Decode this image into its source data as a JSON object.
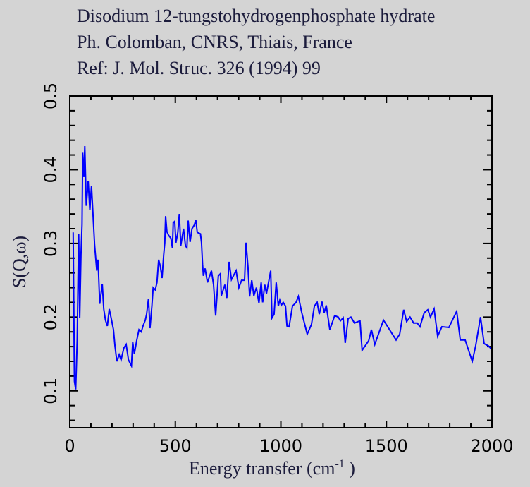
{
  "title_lines": [
    "Disodium 12-tungstohydrogenphosphate hydrate",
    "Ph. Colomban, CNRS, Thiais, France",
    "Ref: J. Mol. Struc. 326 (1994) 99"
  ],
  "colors": {
    "background": "#d4d4d4",
    "line": "#0000ff",
    "axes": "#000000",
    "text": "#1c1c3c"
  },
  "chart_data": {
    "type": "line",
    "title": "Disodium 12-tungstohydrogenphosphate hydrate",
    "xlabel": "Energy transfer (cm",
    "xlabel_sup": "-1",
    "xlabel_close": " )",
    "ylabel": "S(Q,ω)",
    "xlim": [
      0,
      2000
    ],
    "ylim": [
      0.05,
      0.5
    ],
    "xticks": [
      0,
      500,
      1000,
      1500,
      2000
    ],
    "xtick_labels": [
      "0",
      "500",
      "1000",
      "1500",
      "2000"
    ],
    "yticks": [
      0.1,
      0.2,
      0.3,
      0.4,
      0.5
    ],
    "ytick_labels": [
      "0.1",
      "0.2",
      "0.3",
      "0.4",
      "0.5"
    ],
    "x_minor_step": 100,
    "y_minor_step": 0.02,
    "grid": false,
    "series": [
      {
        "name": "S(Q,ω)",
        "x": [
          16,
          22,
          28,
          35,
          42,
          47,
          53,
          58,
          61,
          67,
          71,
          78,
          87,
          95,
          103,
          111,
          118,
          128,
          134,
          142,
          154,
          161,
          169,
          178,
          187,
          198,
          207,
          214,
          223,
          234,
          243,
          256,
          267,
          278,
          292,
          298,
          306,
          317,
          328,
          339,
          347,
          358,
          364,
          373,
          380,
          389,
          395,
          405,
          413,
          421,
          429,
          437,
          445,
          450,
          454,
          460,
          468,
          479,
          486,
          490,
          497,
          503,
          512,
          519,
          526,
          539,
          548,
          555,
          561,
          570,
          579,
          590,
          597,
          604,
          619,
          624,
          629,
          633,
          641,
          652,
          663,
          671,
          681,
          691,
          704,
          714,
          718,
          735,
          744,
          755,
          766,
          788,
          801,
          814,
          828,
          835,
          844,
          852,
          862,
          872,
          884,
          896,
          907,
          914,
          924,
          932,
          952,
          958,
          968,
          978,
          988,
          995,
          1002,
          1011,
          1022,
          1029,
          1039,
          1055,
          1072,
          1083,
          1099,
          1125,
          1145,
          1159,
          1172,
          1182,
          1195,
          1205,
          1215,
          1232,
          1255,
          1272,
          1282,
          1295,
          1305,
          1319,
          1332,
          1349,
          1375,
          1385,
          1416,
          1429,
          1445,
          1486,
          1546,
          1563,
          1582,
          1596,
          1612,
          1629,
          1646,
          1659,
          1679,
          1696,
          1709,
          1726,
          1743,
          1763,
          1796,
          1833,
          1850,
          1873,
          1907,
          1923,
          1946,
          1963,
          1983,
          2000
        ],
        "y": [
          0.315,
          0.113,
          0.102,
          0.168,
          0.313,
          0.199,
          0.285,
          0.326,
          0.423,
          0.39,
          0.432,
          0.351,
          0.385,
          0.345,
          0.378,
          0.335,
          0.297,
          0.263,
          0.278,
          0.218,
          0.245,
          0.211,
          0.196,
          0.188,
          0.211,
          0.196,
          0.183,
          0.161,
          0.14,
          0.149,
          0.142,
          0.158,
          0.163,
          0.142,
          0.134,
          0.166,
          0.15,
          0.168,
          0.183,
          0.18,
          0.188,
          0.196,
          0.204,
          0.225,
          0.185,
          0.215,
          0.24,
          0.237,
          0.247,
          0.278,
          0.269,
          0.253,
          0.285,
          0.301,
          0.337,
          0.316,
          0.311,
          0.307,
          0.294,
          0.328,
          0.33,
          0.301,
          0.315,
          0.34,
          0.297,
          0.32,
          0.297,
          0.294,
          0.331,
          0.302,
          0.32,
          0.325,
          0.332,
          0.315,
          0.313,
          0.301,
          0.272,
          0.256,
          0.266,
          0.247,
          0.256,
          0.263,
          0.244,
          0.202,
          0.256,
          0.259,
          0.229,
          0.244,
          0.226,
          0.275,
          0.251,
          0.263,
          0.24,
          0.25,
          0.25,
          0.301,
          0.269,
          0.228,
          0.25,
          0.229,
          0.24,
          0.219,
          0.247,
          0.22,
          0.244,
          0.232,
          0.263,
          0.199,
          0.204,
          0.247,
          0.215,
          0.223,
          0.216,
          0.22,
          0.215,
          0.188,
          0.187,
          0.215,
          0.22,
          0.228,
          0.206,
          0.177,
          0.19,
          0.215,
          0.22,
          0.204,
          0.221,
          0.206,
          0.216,
          0.183,
          0.202,
          0.2,
          0.195,
          0.199,
          0.165,
          0.198,
          0.2,
          0.192,
          0.195,
          0.155,
          0.168,
          0.183,
          0.163,
          0.196,
          0.169,
          0.177,
          0.21,
          0.194,
          0.2,
          0.192,
          0.192,
          0.187,
          0.206,
          0.21,
          0.2,
          0.211,
          0.174,
          0.187,
          0.186,
          0.208,
          0.169,
          0.169,
          0.14,
          0.161,
          0.2,
          0.164,
          0.161,
          0.156
        ]
      }
    ]
  }
}
